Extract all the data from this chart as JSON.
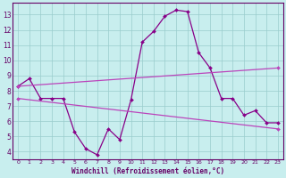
{
  "x": [
    0,
    1,
    2,
    3,
    4,
    5,
    6,
    7,
    8,
    9,
    10,
    11,
    12,
    13,
    14,
    15,
    16,
    17,
    18,
    19,
    20,
    21,
    22,
    23
  ],
  "line1": [
    8.3,
    8.8,
    7.5,
    7.5,
    7.5,
    5.3,
    4.2,
    3.8,
    5.5,
    4.8,
    7.4,
    11.2,
    11.9,
    12.9,
    13.3,
    13.2,
    10.5,
    9.5,
    7.5,
    7.5,
    6.4,
    6.7,
    5.9,
    5.9
  ],
  "line2_x": [
    0,
    23
  ],
  "line2_y": [
    8.3,
    9.5
  ],
  "line3_x": [
    0,
    23
  ],
  "line3_y": [
    7.5,
    5.5
  ],
  "line_color": "#880088",
  "line2_color": "#bb44bb",
  "line3_color": "#bb44bb",
  "bg_color": "#c8eeee",
  "grid_color": "#99cccc",
  "axis_color": "#660066",
  "tick_color": "#660066",
  "xlabel": "Windchill (Refroidissement éolien,°C)",
  "ylim": [
    3.5,
    13.8
  ],
  "xlim": [
    -0.5,
    23.5
  ],
  "yticks": [
    4,
    5,
    6,
    7,
    8,
    9,
    10,
    11,
    12,
    13
  ],
  "xticks": [
    0,
    1,
    2,
    3,
    4,
    5,
    6,
    7,
    8,
    9,
    10,
    11,
    12,
    13,
    14,
    15,
    16,
    17,
    18,
    19,
    20,
    21,
    22,
    23
  ],
  "xlabel_fontsize": 5.5,
  "tick_fontsize_x": 4.5,
  "tick_fontsize_y": 5.5
}
